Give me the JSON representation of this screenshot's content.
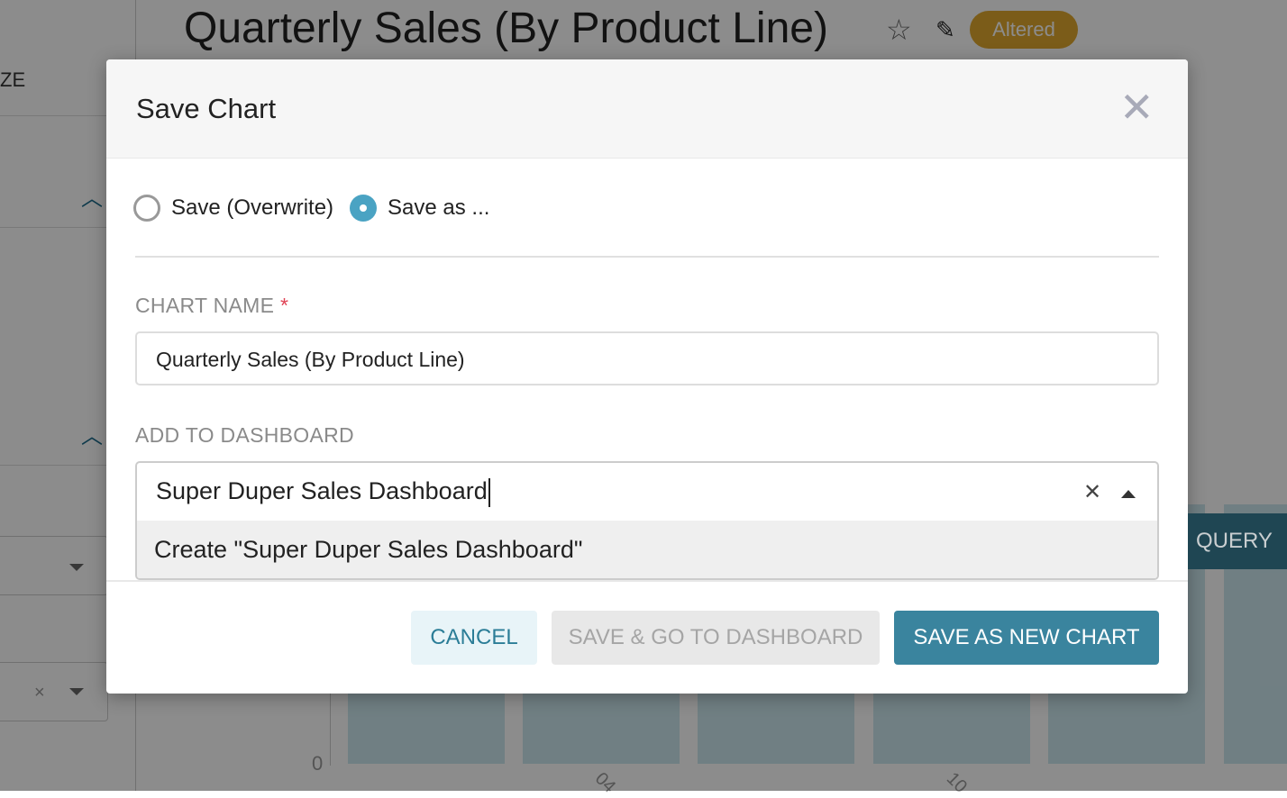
{
  "background": {
    "sidebar_label": "ZE",
    "chart_title": "Quarterly Sales (By Product Line)",
    "status_badge": "Altered",
    "run_query_label": "QUERY",
    "y_axis_zero": "0",
    "x_ticks": [
      "04",
      "10"
    ]
  },
  "modal": {
    "title": "Save Chart",
    "radio_options": [
      {
        "label": "Save (Overwrite)",
        "selected": false
      },
      {
        "label": "Save as ...",
        "selected": true
      }
    ],
    "chart_name_label": "CHART NAME",
    "required_mark": "*",
    "chart_name_value": "Quarterly Sales (By Product Line)",
    "dashboard_label": "ADD TO DASHBOARD",
    "dashboard_value": "Super Duper Sales Dashboard",
    "dashboard_option": "Create \"Super Duper Sales Dashboard\"",
    "buttons": {
      "cancel": "CANCEL",
      "save_go": "SAVE & GO TO DASHBOARD",
      "save_new": "SAVE AS NEW CHART"
    }
  },
  "colors": {
    "primary": "#3a849e",
    "badge": "#e0a82e",
    "radio_selected": "#4aa3c3"
  }
}
